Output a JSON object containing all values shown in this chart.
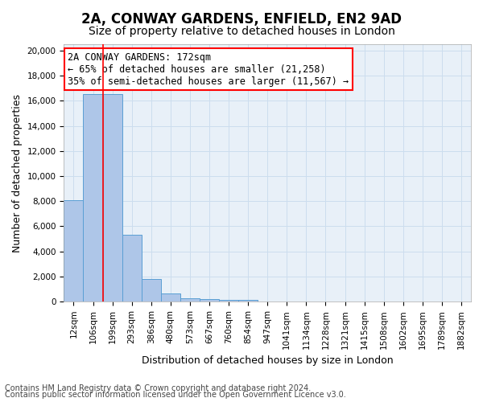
{
  "title": "2A, CONWAY GARDENS, ENFIELD, EN2 9AD",
  "subtitle": "Size of property relative to detached houses in London",
  "xlabel": "Distribution of detached houses by size in London",
  "ylabel": "Number of detached properties",
  "bar_values": [
    8100,
    16500,
    16500,
    5300,
    1800,
    650,
    280,
    200,
    150,
    150,
    0,
    0,
    0,
    0,
    0,
    0,
    0,
    0,
    0,
    0,
    0
  ],
  "bar_labels": [
    "12sqm",
    "106sqm",
    "199sqm",
    "293sqm",
    "386sqm",
    "480sqm",
    "573sqm",
    "667sqm",
    "760sqm",
    "854sqm",
    "947sqm",
    "1041sqm",
    "1134sqm",
    "1228sqm",
    "1321sqm",
    "1415sqm",
    "1508sqm",
    "1602sqm",
    "1695sqm",
    "1789sqm",
    "1882sqm"
  ],
  "bar_color": "#aec6e8",
  "bar_edgecolor": "#5a9fd4",
  "vline_x": 1.5,
  "vline_color": "red",
  "annotation_title": "2A CONWAY GARDENS: 172sqm",
  "annotation_line1": "← 65% of detached houses are smaller (21,258)",
  "annotation_line2": "35% of semi-detached houses are larger (11,567) →",
  "annotation_box_color": "white",
  "annotation_box_edgecolor": "red",
  "ylim": [
    0,
    20500
  ],
  "yticks": [
    0,
    2000,
    4000,
    6000,
    8000,
    10000,
    12000,
    14000,
    16000,
    18000,
    20000
  ],
  "background_color": "white",
  "axes_facecolor": "#e8f0f8",
  "grid_color": "#ccddee",
  "footer_line1": "Contains HM Land Registry data © Crown copyright and database right 2024.",
  "footer_line2": "Contains public sector information licensed under the Open Government Licence v3.0.",
  "title_fontsize": 12,
  "subtitle_fontsize": 10,
  "axis_label_fontsize": 9,
  "tick_fontsize": 7.5,
  "annotation_fontsize": 8.5,
  "footer_fontsize": 7
}
